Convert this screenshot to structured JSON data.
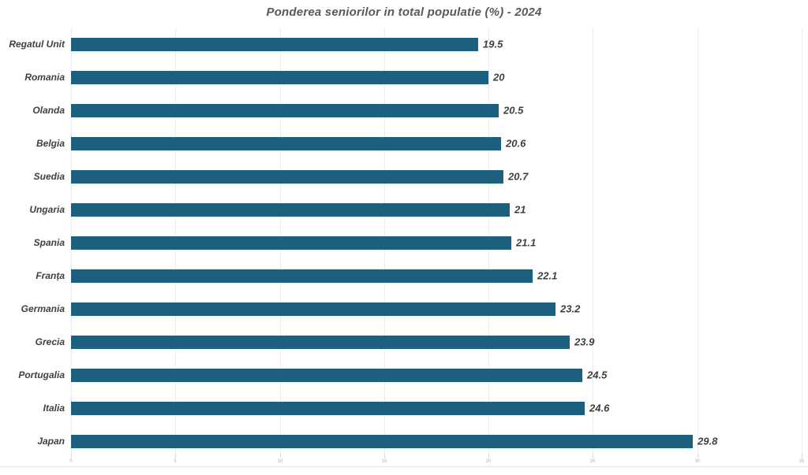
{
  "title": "Ponderea seniorilor in total populatie (%) - 2024",
  "colors": {
    "bar": "#1E5F7E",
    "title_text": "#595959",
    "label_text": "#404040",
    "gridline": "#EBEBEB",
    "tick_text": "#B0B0B0"
  },
  "chart_data": {
    "type": "bar",
    "orientation": "horizontal",
    "title": "Ponderea seniorilor in total populatie (%) - 2024",
    "categories": [
      "Regatul Unit",
      "Romania",
      "Olanda",
      "Belgia",
      "Suedia",
      "Ungaria",
      "Spania",
      "Franța",
      "Germania",
      "Grecia",
      "Portugalia",
      "Italia",
      "Japan"
    ],
    "values": [
      19.5,
      20,
      20.5,
      20.6,
      20.7,
      21,
      21.1,
      22.1,
      23.2,
      23.9,
      24.5,
      24.6,
      29.8
    ],
    "value_labels": [
      "19.5",
      "20",
      "20.5",
      "20.6",
      "20.7",
      "21",
      "21.1",
      "22.1",
      "23.2",
      "23.9",
      "24.5",
      "24.6",
      "29.8"
    ],
    "xlabel": "",
    "ylabel": "",
    "xlim": [
      0,
      35
    ],
    "x_ticks": [
      0,
      5,
      10,
      15,
      20,
      25,
      30,
      35
    ],
    "grid": true,
    "legend": false,
    "data_labels": true
  }
}
